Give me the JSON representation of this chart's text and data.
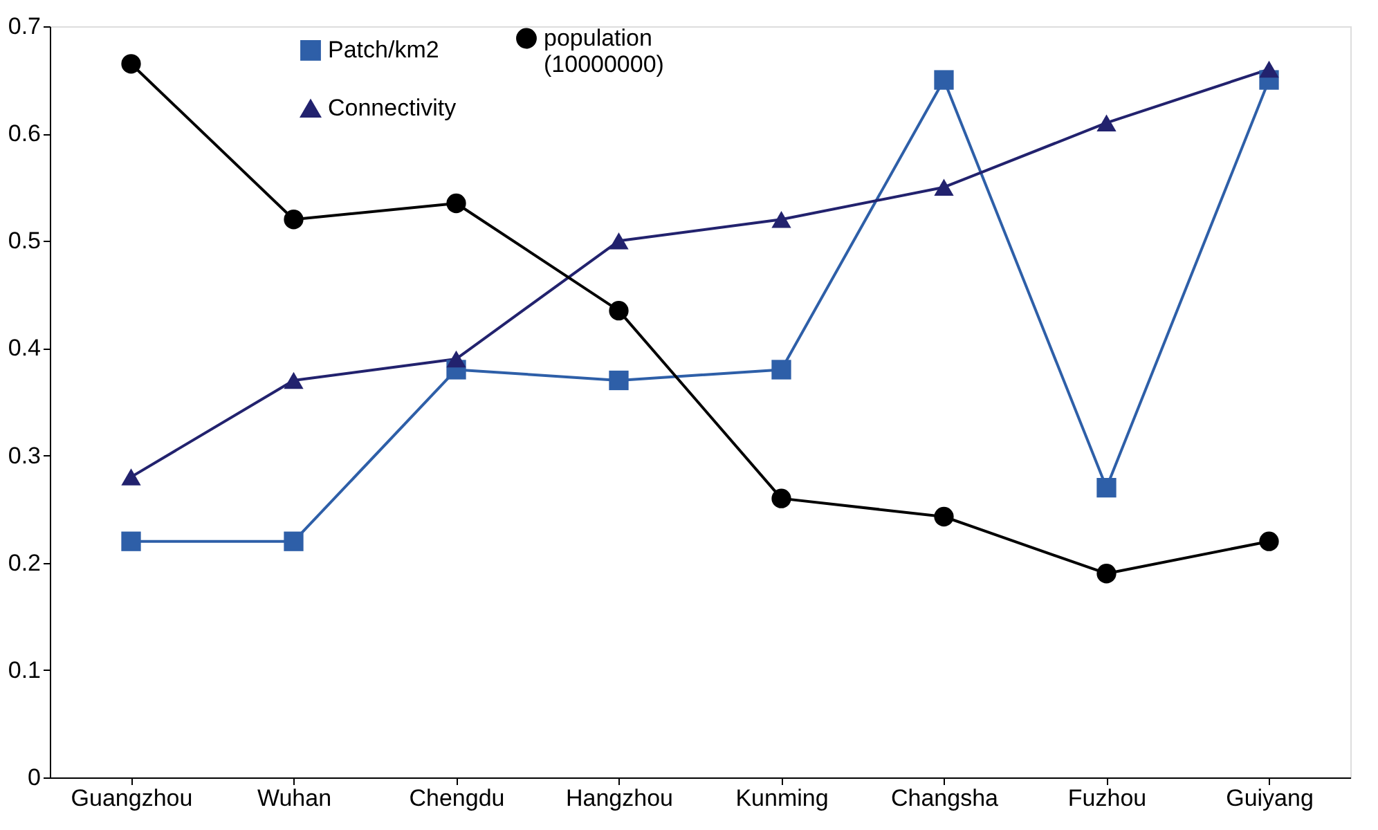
{
  "chart_data": {
    "type": "line",
    "categories": [
      "Guangzhou",
      "Wuhan",
      "Chengdu",
      "Hangzhou",
      "Kunming",
      "Changsha",
      "Fuzhou",
      "Guiyang"
    ],
    "series": [
      {
        "name": "Patch/km2",
        "color": "#2e5fa8",
        "marker": "square",
        "values": [
          0.22,
          0.22,
          0.38,
          0.37,
          0.38,
          0.65,
          0.27,
          0.65
        ]
      },
      {
        "name": "Connectivity",
        "color": "#22226e",
        "marker": "triangle",
        "values": [
          0.28,
          0.37,
          0.39,
          0.5,
          0.52,
          0.55,
          0.61,
          0.66
        ]
      },
      {
        "name": "population\n(10000000)",
        "color": "#000000",
        "marker": "circle",
        "values": [
          0.665,
          0.52,
          0.535,
          0.435,
          0.26,
          0.243,
          0.19,
          0.22
        ]
      }
    ],
    "ylim": [
      0,
      0.7
    ],
    "yticks": [
      0,
      0.1,
      0.2,
      0.3,
      0.4,
      0.5,
      0.6,
      0.7
    ],
    "grid": false,
    "legend": "top",
    "line_style": "solid"
  }
}
